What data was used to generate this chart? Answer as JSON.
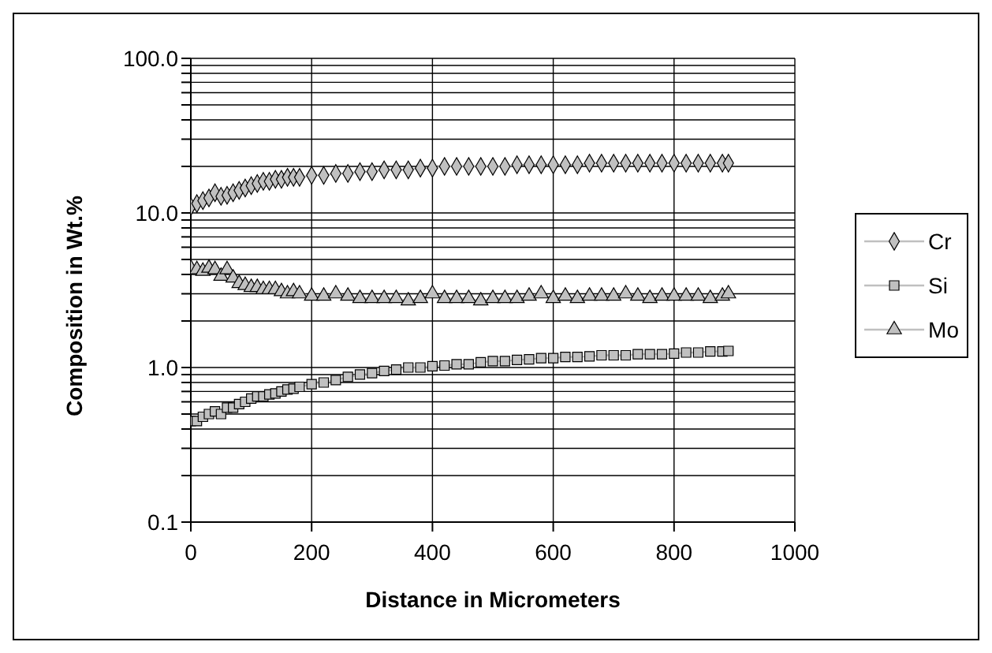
{
  "chart_data": {
    "type": "line",
    "xlabel": "Distance in Micrometers",
    "ylabel": "Composition in Wt.%",
    "x": [
      0,
      10,
      20,
      30,
      40,
      50,
      60,
      70,
      80,
      90,
      100,
      110,
      120,
      130,
      140,
      150,
      160,
      170,
      180,
      200,
      220,
      240,
      260,
      280,
      300,
      320,
      340,
      360,
      380,
      400,
      420,
      440,
      460,
      480,
      500,
      520,
      540,
      560,
      580,
      600,
      620,
      640,
      660,
      680,
      700,
      720,
      740,
      760,
      780,
      800,
      820,
      840,
      860,
      880,
      890
    ],
    "series": [
      {
        "name": "Cr",
        "color": "#c0c0c0",
        "marker": "diamond",
        "values": [
          11,
          11.5,
          12,
          12.5,
          13.5,
          12.8,
          13,
          13.5,
          14,
          14.5,
          15,
          15.5,
          16,
          16,
          16.5,
          16.5,
          17,
          17,
          17,
          17.5,
          17.5,
          18,
          18,
          18.5,
          18.5,
          19,
          19,
          19,
          19.5,
          19.5,
          20,
          20,
          20,
          20,
          20,
          20,
          20.5,
          20.5,
          20.5,
          20.5,
          20.5,
          20.5,
          21,
          21,
          21,
          21,
          21,
          21,
          21,
          21,
          21,
          21,
          21,
          21,
          21
        ]
      },
      {
        "name": "Si",
        "color": "#c0c0c0",
        "marker": "square",
        "values": [
          0.45,
          0.45,
          0.48,
          0.5,
          0.52,
          0.5,
          0.55,
          0.55,
          0.58,
          0.6,
          0.63,
          0.65,
          0.65,
          0.67,
          0.68,
          0.7,
          0.72,
          0.73,
          0.75,
          0.78,
          0.8,
          0.83,
          0.87,
          0.9,
          0.92,
          0.95,
          0.97,
          1.0,
          1.0,
          1.02,
          1.03,
          1.05,
          1.05,
          1.08,
          1.1,
          1.1,
          1.12,
          1.13,
          1.15,
          1.15,
          1.17,
          1.17,
          1.18,
          1.2,
          1.2,
          1.2,
          1.22,
          1.22,
          1.22,
          1.23,
          1.25,
          1.25,
          1.27,
          1.27,
          1.28
        ]
      },
      {
        "name": "Mo",
        "color": "#c0c0c0",
        "marker": "triangle",
        "values": [
          4.4,
          4.3,
          4.2,
          4.4,
          4.3,
          3.9,
          4.3,
          3.8,
          3.5,
          3.4,
          3.3,
          3.3,
          3.2,
          3.2,
          3.2,
          3.1,
          3.0,
          3.1,
          3.0,
          2.9,
          2.9,
          3.0,
          2.9,
          2.8,
          2.8,
          2.8,
          2.8,
          2.7,
          2.8,
          3.0,
          2.8,
          2.8,
          2.8,
          2.7,
          2.8,
          2.8,
          2.8,
          2.9,
          3.0,
          2.8,
          2.9,
          2.8,
          2.9,
          2.9,
          2.9,
          3.0,
          2.9,
          2.8,
          2.9,
          2.9,
          2.9,
          2.9,
          2.8,
          2.9,
          3.0
        ]
      }
    ],
    "xlim": [
      0,
      1000
    ],
    "xticks": [
      0,
      200,
      400,
      600,
      800,
      1000
    ],
    "ylim": [
      0.1,
      100
    ],
    "log": true,
    "yticks": [
      {
        "value": 0.1,
        "label": "0.1"
      },
      {
        "value": 0.2,
        "label": null
      },
      {
        "value": 0.3,
        "label": null
      },
      {
        "value": 0.4,
        "label": null
      },
      {
        "value": 0.5,
        "label": null
      },
      {
        "value": 0.6,
        "label": null
      },
      {
        "value": 0.7,
        "label": null
      },
      {
        "value": 0.8,
        "label": null
      },
      {
        "value": 0.9,
        "label": null
      },
      {
        "value": 1,
        "label": "1.0"
      },
      {
        "value": 2,
        "label": null
      },
      {
        "value": 3,
        "label": null
      },
      {
        "value": 4,
        "label": null
      },
      {
        "value": 5,
        "label": null
      },
      {
        "value": 6,
        "label": null
      },
      {
        "value": 7,
        "label": null
      },
      {
        "value": 8,
        "label": null
      },
      {
        "value": 9,
        "label": null
      },
      {
        "value": 10,
        "label": "10.0"
      },
      {
        "value": 20,
        "label": null
      },
      {
        "value": 30,
        "label": null
      },
      {
        "value": 40,
        "label": null
      },
      {
        "value": 50,
        "label": null
      },
      {
        "value": 60,
        "label": null
      },
      {
        "value": 70,
        "label": null
      },
      {
        "value": 80,
        "label": null
      },
      {
        "value": 90,
        "label": null
      },
      {
        "value": 100,
        "label": "100.0"
      }
    ],
    "grid": true,
    "legend": "right",
    "line_style": "solid"
  }
}
